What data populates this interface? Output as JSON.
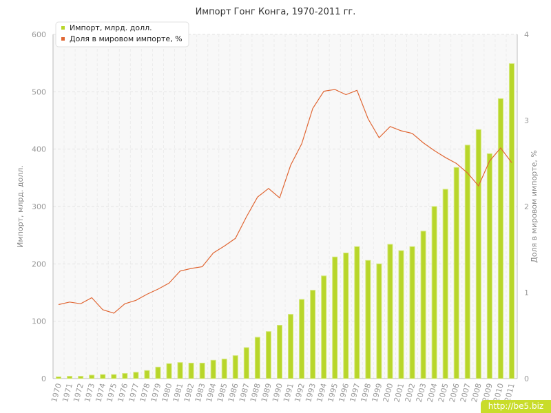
{
  "chart_data": {
    "type": "bar",
    "title": "Импорт Гонг Конга, 1970-2011 гг.",
    "categories": [
      "1970",
      "1971",
      "1972",
      "1973",
      "1974",
      "1975",
      "1976",
      "1977",
      "1978",
      "1979",
      "1980",
      "1981",
      "1982",
      "1983",
      "1984",
      "1985",
      "1986",
      "1987",
      "1988",
      "1989",
      "1990",
      "1991",
      "1992",
      "1993",
      "1994",
      "1995",
      "1996",
      "1997",
      "1998",
      "1999",
      "2000",
      "2001",
      "2002",
      "2003",
      "2004",
      "2005",
      "2006",
      "2007",
      "2008",
      "2009",
      "2010",
      "2011"
    ],
    "series": [
      {
        "name": "Импорт, млрд. долл.",
        "type": "bar",
        "axis": "left",
        "color": "#b8d62a",
        "values": [
          3,
          4,
          4,
          6,
          7,
          7,
          9,
          11,
          14,
          20,
          26,
          28,
          27,
          27,
          32,
          34,
          40,
          54,
          72,
          82,
          93,
          112,
          138,
          154,
          179,
          212,
          219,
          230,
          206,
          200,
          234,
          223,
          230,
          257,
          300,
          330,
          368,
          407,
          434,
          392,
          488,
          549
        ]
      },
      {
        "name": "Доля в мировом импорте, %",
        "type": "line",
        "axis": "right",
        "color": "#e06633",
        "values": [
          0.86,
          0.89,
          0.87,
          0.94,
          0.8,
          0.76,
          0.87,
          0.91,
          0.98,
          1.04,
          1.11,
          1.25,
          1.28,
          1.3,
          1.46,
          1.54,
          1.63,
          1.88,
          2.11,
          2.21,
          2.1,
          2.48,
          2.73,
          3.14,
          3.34,
          3.36,
          3.3,
          3.35,
          3.02,
          2.8,
          2.93,
          2.88,
          2.85,
          2.74,
          2.65,
          2.57,
          2.5,
          2.39,
          2.24,
          2.53,
          2.68,
          2.51
        ]
      }
    ],
    "ylabel": "Импорт, млрд. долл.",
    "ylim": [
      0,
      600
    ],
    "yticks": [
      "0",
      "100",
      "200",
      "300",
      "400",
      "500",
      "600"
    ],
    "y2label": "Доля в мировом импорте, %",
    "y2lim": [
      0,
      4
    ],
    "y2ticks": [
      "0",
      "1",
      "2",
      "3",
      "4"
    ],
    "grid": true,
    "legend": "top-left"
  },
  "watermark": "http://be5.biz"
}
